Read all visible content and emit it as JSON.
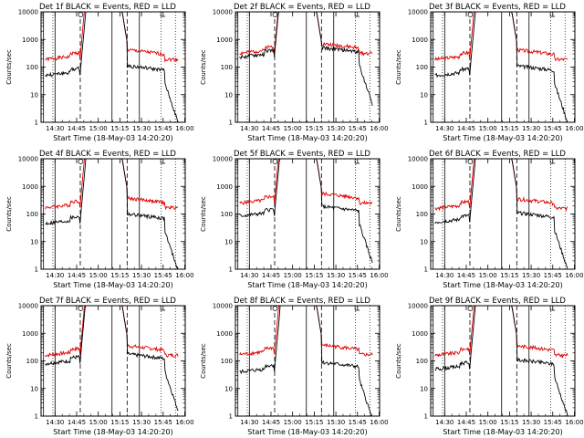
{
  "colors": {
    "events": "#000000",
    "lld": "#e00000",
    "axes": "#000000"
  },
  "chart_data": [
    {
      "type": "line",
      "title": "Det 1f BLACK = Events, RED = LLD",
      "xlabel": "Start Time (18-May-03 14:20:20)",
      "ylabel": "Counts/sec",
      "yscale": "log",
      "ylim": [
        1,
        10000
      ],
      "x_ticks": [
        "14:30",
        "14:45",
        "15:00",
        "15:15",
        "15:30",
        "15:45",
        "16:00"
      ],
      "y_ticks": [
        "1",
        "10",
        "100",
        "1000",
        "10000"
      ],
      "black_base": 50,
      "red_base": 190,
      "seed": 1
    },
    {
      "type": "line",
      "title": "Det 2f BLACK = Events, RED = LLD",
      "xlabel": "Start Time (18-May-03 14:20:20)",
      "ylabel": "Counts/sec",
      "yscale": "log",
      "ylim": [
        1,
        10000
      ],
      "x_ticks": [
        "14:30",
        "14:45",
        "15:00",
        "15:15",
        "15:30",
        "15:45",
        "16:00"
      ],
      "y_ticks": [
        "1",
        "10",
        "100",
        "1000",
        "10000"
      ],
      "black_base": 230,
      "red_base": 320,
      "seed": 2
    },
    {
      "type": "line",
      "title": "Det 3f BLACK = Events, RED = LLD",
      "xlabel": "Start Time (18-May-03 14:20:20)",
      "ylabel": "Counts/sec",
      "yscale": "log",
      "ylim": [
        1,
        10000
      ],
      "x_ticks": [
        "14:30",
        "14:45",
        "15:00",
        "15:15",
        "15:30",
        "15:45",
        "16:00"
      ],
      "y_ticks": [
        "1",
        "10",
        "100",
        "1000",
        "10000"
      ],
      "black_base": 50,
      "red_base": 190,
      "seed": 3
    },
    {
      "type": "line",
      "title": "Det 4f BLACK = Events, RED = LLD",
      "xlabel": "Start Time (18-May-03 14:20:20)",
      "ylabel": "Counts/sec",
      "yscale": "log",
      "ylim": [
        1,
        10000
      ],
      "x_ticks": [
        "14:30",
        "14:45",
        "15:00",
        "15:15",
        "15:30",
        "15:45",
        "16:00"
      ],
      "y_ticks": [
        "1",
        "10",
        "100",
        "1000",
        "10000"
      ],
      "black_base": 45,
      "red_base": 170,
      "seed": 4
    },
    {
      "type": "line",
      "title": "Det 5f BLACK = Events, RED = LLD",
      "xlabel": "Start Time (18-May-03 14:20:20)",
      "ylabel": "Counts/sec",
      "yscale": "log",
      "ylim": [
        1,
        10000
      ],
      "x_ticks": [
        "14:30",
        "14:45",
        "15:00",
        "15:15",
        "15:30",
        "15:45",
        "16:00"
      ],
      "y_ticks": [
        "1",
        "10",
        "100",
        "1000",
        "10000"
      ],
      "black_base": 85,
      "red_base": 250,
      "seed": 5
    },
    {
      "type": "line",
      "title": "Det 6f BLACK = Events, RED = LLD",
      "xlabel": "Start Time (18-May-03 14:20:20)",
      "ylabel": "Counts/sec",
      "yscale": "log",
      "ylim": [
        1,
        10000
      ],
      "x_ticks": [
        "14:30",
        "14:45",
        "15:00",
        "15:15",
        "15:30",
        "15:45",
        "16:00"
      ],
      "y_ticks": [
        "1",
        "10",
        "100",
        "1000",
        "10000"
      ],
      "black_base": 50,
      "red_base": 160,
      "seed": 6
    },
    {
      "type": "line",
      "title": "Det 7f BLACK = Events, RED = LLD",
      "xlabel": "Start Time (18-May-03 14:20:20)",
      "ylabel": "Counts/sec",
      "yscale": "log",
      "ylim": [
        1,
        10000
      ],
      "x_ticks": [
        "14:30",
        "14:45",
        "15:00",
        "15:15",
        "15:30",
        "15:45",
        "16:00"
      ],
      "y_ticks": [
        "1",
        "10",
        "100",
        "1000",
        "10000"
      ],
      "black_base": 80,
      "red_base": 160,
      "seed": 7
    },
    {
      "type": "line",
      "title": "Det 8f BLACK = Events, RED = LLD",
      "xlabel": "Start Time (18-May-03 14:20:20)",
      "ylabel": "Counts/sec",
      "yscale": "log",
      "ylim": [
        1,
        10000
      ],
      "x_ticks": [
        "14:30",
        "14:45",
        "15:00",
        "15:15",
        "15:30",
        "15:45",
        "16:00"
      ],
      "y_ticks": [
        "1",
        "10",
        "100",
        "1000",
        "10000"
      ],
      "black_base": 40,
      "red_base": 170,
      "seed": 8
    },
    {
      "type": "line",
      "title": "Det 9f BLACK = Events, RED = LLD",
      "xlabel": "Start Time (18-May-03 14:20:20)",
      "ylabel": "Counts/sec",
      "yscale": "log",
      "ylim": [
        1,
        10000
      ],
      "x_ticks": [
        "14:30",
        "14:45",
        "15:00",
        "15:15",
        "15:30",
        "15:45",
        "16:00"
      ],
      "y_ticks": [
        "1",
        "10",
        "100",
        "1000",
        "10000"
      ],
      "black_base": 50,
      "red_base": 160,
      "seed": 9
    }
  ]
}
